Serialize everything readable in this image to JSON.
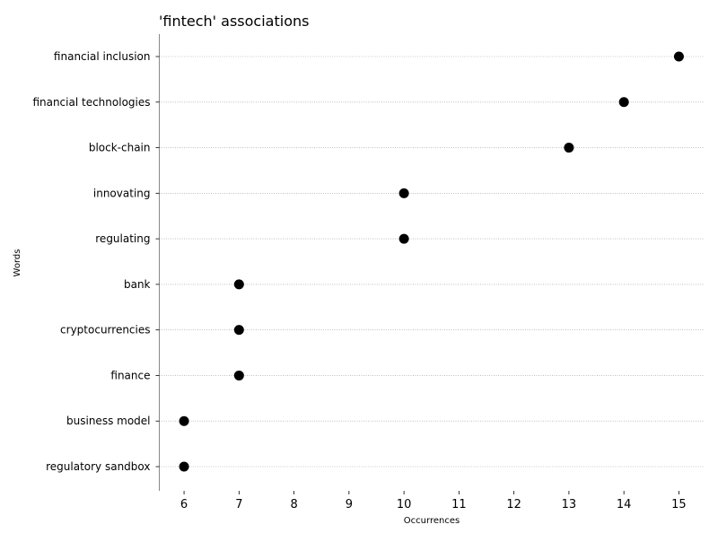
{
  "chart_data": {
    "type": "scatter",
    "title": "'fintech' associations",
    "xlabel": "Occurrences",
    "ylabel": "Words",
    "xlim": [
      5.55,
      15.45
    ],
    "xticks": [
      6,
      7,
      8,
      9,
      10,
      11,
      12,
      13,
      14,
      15
    ],
    "categories": [
      "financial inclusion",
      "financial technologies",
      "block-chain",
      "innovating",
      "regulating",
      "bank",
      "cryptocurrencies",
      "finance",
      "business model",
      "regulatory sandbox"
    ],
    "values": [
      15,
      14,
      13,
      10,
      10,
      7,
      7,
      7,
      6,
      6
    ],
    "grid": "horizontal dotted",
    "marker_color": "#000000",
    "grid_color": "#999999",
    "axis_color": "#888888"
  }
}
